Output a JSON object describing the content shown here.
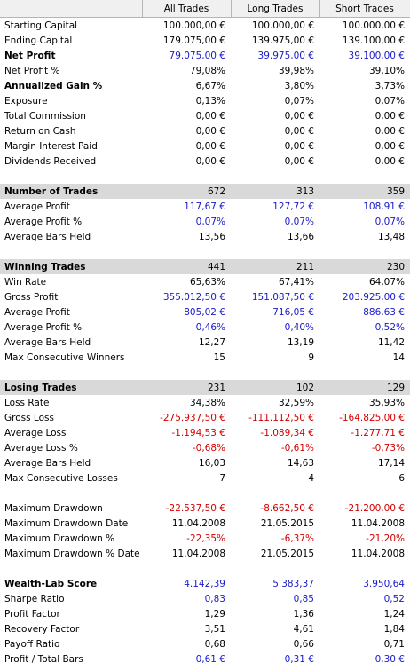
{
  "columns": [
    "",
    "All Trades",
    "Long Trades",
    "Short Trades"
  ],
  "rows": [
    {
      "label": "Starting Capital",
      "values": [
        "100.000,00 €",
        "100.000,00 €",
        "100.000,00 €"
      ],
      "style": "normal",
      "color": "black"
    },
    {
      "label": "Ending Capital",
      "values": [
        "179.075,00 €",
        "139.975,00 €",
        "139.100,00 €"
      ],
      "style": "normal",
      "color": "black"
    },
    {
      "label": "Net Profit",
      "values": [
        "79.075,00 €",
        "39.975,00 €",
        "39.100,00 €"
      ],
      "style": "bold",
      "color": "blue"
    },
    {
      "label": "Net Profit %",
      "values": [
        "79,08%",
        "39,98%",
        "39,10%"
      ],
      "style": "normal",
      "color": "black"
    },
    {
      "label": "Annualized Gain %",
      "values": [
        "6,67%",
        "3,80%",
        "3,73%"
      ],
      "style": "bold",
      "color": "black"
    },
    {
      "label": "Exposure",
      "values": [
        "0,13%",
        "0,07%",
        "0,07%"
      ],
      "style": "normal",
      "color": "black"
    },
    {
      "label": "Total Commission",
      "values": [
        "0,00 €",
        "0,00 €",
        "0,00 €"
      ],
      "style": "normal",
      "color": "black"
    },
    {
      "label": "Return on Cash",
      "values": [
        "0,00 €",
        "0,00 €",
        "0,00 €"
      ],
      "style": "normal",
      "color": "black"
    },
    {
      "label": "Margin Interest Paid",
      "values": [
        "0,00 €",
        "0,00 €",
        "0,00 €"
      ],
      "style": "normal",
      "color": "black"
    },
    {
      "label": "Dividends Received",
      "values": [
        "0,00 €",
        "0,00 €",
        "0,00 €"
      ],
      "style": "normal",
      "color": "black"
    },
    {
      "label": "",
      "values": [
        "",
        "",
        ""
      ],
      "style": "spacer",
      "color": "black"
    },
    {
      "label": "Number of Trades",
      "values": [
        "672",
        "313",
        "359"
      ],
      "style": "section",
      "color": "black"
    },
    {
      "label": "Average Profit",
      "values": [
        "117,67 €",
        "127,72 €",
        "108,91 €"
      ],
      "style": "normal",
      "color": "blue"
    },
    {
      "label": "Average Profit %",
      "values": [
        "0,07%",
        "0,07%",
        "0,07%"
      ],
      "style": "normal",
      "color": "blue"
    },
    {
      "label": "Average Bars Held",
      "values": [
        "13,56",
        "13,66",
        "13,48"
      ],
      "style": "normal",
      "color": "black"
    },
    {
      "label": "",
      "values": [
        "",
        "",
        ""
      ],
      "style": "spacer",
      "color": "black"
    },
    {
      "label": "Winning Trades",
      "values": [
        "441",
        "211",
        "230"
      ],
      "style": "section",
      "color": "black"
    },
    {
      "label": "Win Rate",
      "values": [
        "65,63%",
        "67,41%",
        "64,07%"
      ],
      "style": "normal",
      "color": "black"
    },
    {
      "label": "Gross Profit",
      "values": [
        "355.012,50 €",
        "151.087,50 €",
        "203.925,00 €"
      ],
      "style": "normal",
      "color": "blue"
    },
    {
      "label": "Average Profit",
      "values": [
        "805,02 €",
        "716,05 €",
        "886,63 €"
      ],
      "style": "normal",
      "color": "blue"
    },
    {
      "label": "Average Profit %",
      "values": [
        "0,46%",
        "0,40%",
        "0,52%"
      ],
      "style": "normal",
      "color": "blue"
    },
    {
      "label": "Average Bars Held",
      "values": [
        "12,27",
        "13,19",
        "11,42"
      ],
      "style": "normal",
      "color": "black"
    },
    {
      "label": "Max Consecutive Winners",
      "values": [
        "15",
        "9",
        "14"
      ],
      "style": "normal",
      "color": "black"
    },
    {
      "label": "",
      "values": [
        "",
        "",
        ""
      ],
      "style": "spacer",
      "color": "black"
    },
    {
      "label": "Losing Trades",
      "values": [
        "231",
        "102",
        "129"
      ],
      "style": "section",
      "color": "black"
    },
    {
      "label": "Loss Rate",
      "values": [
        "34,38%",
        "32,59%",
        "35,93%"
      ],
      "style": "normal",
      "color": "black"
    },
    {
      "label": "Gross Loss",
      "values": [
        "-275.937,50 €",
        "-111.112,50 €",
        "-164.825,00 €"
      ],
      "style": "normal",
      "color": "red"
    },
    {
      "label": "Average Loss",
      "values": [
        "-1.194,53 €",
        "-1.089,34 €",
        "-1.277,71 €"
      ],
      "style": "normal",
      "color": "red"
    },
    {
      "label": "Average Loss %",
      "values": [
        "-0,68%",
        "-0,61%",
        "-0,73%"
      ],
      "style": "normal",
      "color": "red"
    },
    {
      "label": "Average Bars Held",
      "values": [
        "16,03",
        "14,63",
        "17,14"
      ],
      "style": "normal",
      "color": "black"
    },
    {
      "label": "Max Consecutive Losses",
      "values": [
        "7",
        "4",
        "6"
      ],
      "style": "normal",
      "color": "black"
    },
    {
      "label": "",
      "values": [
        "",
        "",
        ""
      ],
      "style": "spacer",
      "color": "black"
    },
    {
      "label": "Maximum Drawdown",
      "values": [
        "-22.537,50 €",
        "-8.662,50 €",
        "-21.200,00 €"
      ],
      "style": "normal",
      "color": "red"
    },
    {
      "label": "Maximum Drawdown Date",
      "values": [
        "11.04.2008",
        "21.05.2015",
        "11.04.2008"
      ],
      "style": "normal",
      "color": "black"
    },
    {
      "label": "Maximum Drawdown %",
      "values": [
        "-22,35%",
        "-6,37%",
        "-21,20%"
      ],
      "style": "normal",
      "color": "red"
    },
    {
      "label": "Maximum Drawdown % Date",
      "values": [
        "11.04.2008",
        "21.05.2015",
        "11.04.2008"
      ],
      "style": "normal",
      "color": "black"
    },
    {
      "label": "",
      "values": [
        "",
        "",
        ""
      ],
      "style": "spacer",
      "color": "black"
    },
    {
      "label": "Wealth-Lab Score",
      "values": [
        "4.142,39",
        "5.383,37",
        "3.950,64"
      ],
      "style": "bold",
      "color": "blue"
    },
    {
      "label": "Sharpe Ratio",
      "values": [
        "0,83",
        "0,85",
        "0,52"
      ],
      "style": "normal",
      "color": "blue"
    },
    {
      "label": "Profit Factor",
      "values": [
        "1,29",
        "1,36",
        "1,24"
      ],
      "style": "normal",
      "color": "black"
    },
    {
      "label": "Recovery Factor",
      "values": [
        "3,51",
        "4,61",
        "1,84"
      ],
      "style": "normal",
      "color": "black"
    },
    {
      "label": "Payoff Ratio",
      "values": [
        "0,68",
        "0,66",
        "0,71"
      ],
      "style": "normal",
      "color": "black"
    },
    {
      "label": "Profit / Total Bars",
      "values": [
        "0,61 €",
        "0,31 €",
        "0,30 €"
      ],
      "style": "normal",
      "color": "blue"
    }
  ],
  "colors": {
    "blue": "#1a1ac8",
    "red": "#d40000",
    "section_bg": "#d9d9d9",
    "header_bg": "#f0f0f0"
  }
}
